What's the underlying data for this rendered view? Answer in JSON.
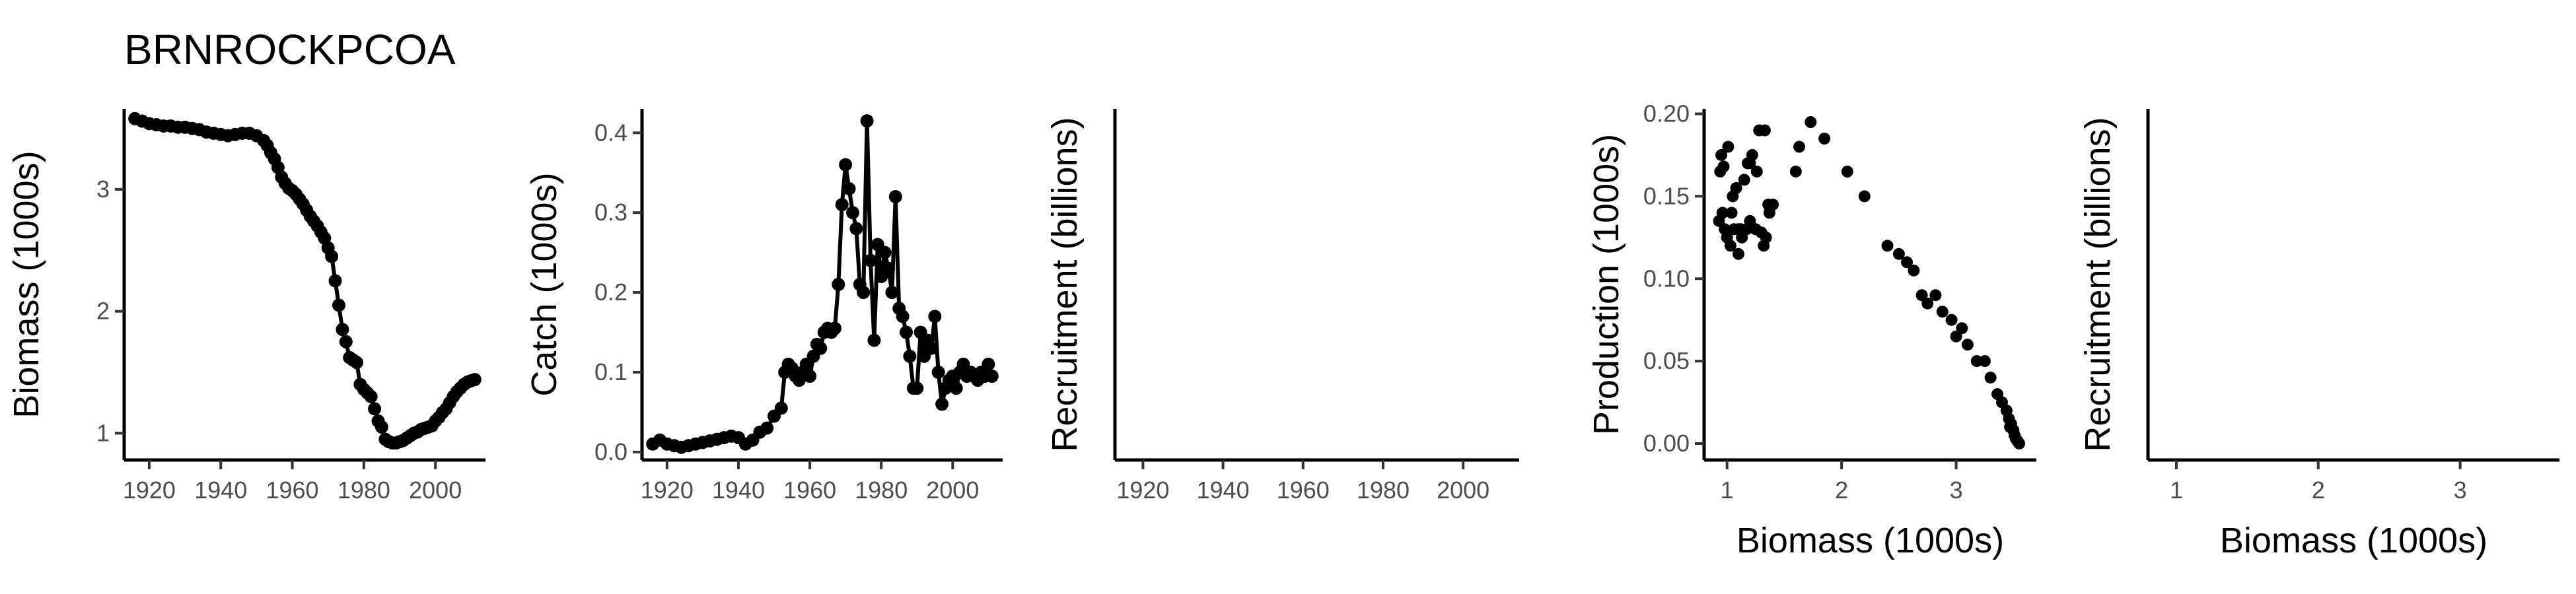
{
  "title": "BRNROCKPCOA",
  "chart_data": [
    {
      "type": "line",
      "xlabel": "",
      "ylabel": "Biomass (1000s)",
      "xlim": [
        1913,
        2014
      ],
      "ylim": [
        0.78,
        3.66
      ],
      "xticks": [
        1920,
        1940,
        1960,
        1980,
        2000
      ],
      "yticks": [
        1,
        2,
        3
      ],
      "markers": true,
      "x": [
        1916,
        1918,
        1920,
        1922,
        1924,
        1926,
        1928,
        1930,
        1932,
        1934,
        1936,
        1938,
        1940,
        1942,
        1944,
        1946,
        1948,
        1950,
        1952,
        1953,
        1954,
        1955,
        1956,
        1957,
        1958,
        1959,
        1960,
        1961,
        1962,
        1963,
        1964,
        1965,
        1966,
        1967,
        1968,
        1969,
        1970,
        1971,
        1972,
        1973,
        1974,
        1975,
        1976,
        1977,
        1978,
        1979,
        1980,
        1981,
        1982,
        1983,
        1984,
        1985,
        1986,
        1987,
        1988,
        1989,
        1990,
        1991,
        1992,
        1993,
        1994,
        1995,
        1996,
        1997,
        1998,
        1999,
        2000,
        2001,
        2002,
        2003,
        2004,
        2005,
        2006,
        2007,
        2008,
        2009,
        2010,
        2011
      ],
      "y": [
        3.58,
        3.56,
        3.54,
        3.53,
        3.52,
        3.52,
        3.51,
        3.51,
        3.5,
        3.49,
        3.47,
        3.46,
        3.45,
        3.44,
        3.45,
        3.46,
        3.46,
        3.44,
        3.4,
        3.36,
        3.3,
        3.25,
        3.18,
        3.1,
        3.05,
        3.01,
        2.99,
        2.96,
        2.92,
        2.88,
        2.83,
        2.78,
        2.74,
        2.7,
        2.65,
        2.6,
        2.52,
        2.45,
        2.25,
        2.05,
        1.85,
        1.75,
        1.62,
        1.6,
        1.58,
        1.4,
        1.36,
        1.33,
        1.3,
        1.2,
        1.1,
        1.05,
        0.95,
        0.93,
        0.92,
        0.92,
        0.93,
        0.94,
        0.96,
        0.98,
        1.0,
        1.01,
        1.03,
        1.04,
        1.05,
        1.06,
        1.1,
        1.13,
        1.17,
        1.2,
        1.25,
        1.3,
        1.34,
        1.37,
        1.4,
        1.42,
        1.43,
        1.44
      ]
    },
    {
      "type": "line",
      "xlabel": "",
      "ylabel": "Catch (1000s)",
      "xlim": [
        1913,
        2014
      ],
      "ylim": [
        -0.01,
        0.43
      ],
      "xticks": [
        1920,
        1940,
        1960,
        1980,
        2000
      ],
      "yticks": [
        0.0,
        0.1,
        0.2,
        0.3,
        0.4
      ],
      "markers": true,
      "x": [
        1916,
        1918,
        1920,
        1922,
        1924,
        1926,
        1928,
        1930,
        1932,
        1934,
        1936,
        1938,
        1940,
        1942,
        1944,
        1946,
        1948,
        1950,
        1952,
        1953,
        1954,
        1955,
        1956,
        1957,
        1958,
        1959,
        1960,
        1961,
        1962,
        1963,
        1964,
        1965,
        1966,
        1967,
        1968,
        1969,
        1970,
        1971,
        1972,
        1973,
        1974,
        1975,
        1976,
        1977,
        1978,
        1979,
        1980,
        1981,
        1982,
        1983,
        1984,
        1985,
        1986,
        1987,
        1988,
        1989,
        1990,
        1991,
        1992,
        1993,
        1994,
        1995,
        1996,
        1997,
        1998,
        1999,
        2000,
        2001,
        2002,
        2003,
        2004,
        2005,
        2006,
        2007,
        2008,
        2009,
        2010,
        2011
      ],
      "y": [
        0.01,
        0.015,
        0.01,
        0.008,
        0.006,
        0.008,
        0.01,
        0.012,
        0.014,
        0.016,
        0.018,
        0.02,
        0.018,
        0.01,
        0.015,
        0.025,
        0.03,
        0.045,
        0.055,
        0.1,
        0.11,
        0.105,
        0.095,
        0.09,
        0.1,
        0.11,
        0.095,
        0.12,
        0.135,
        0.13,
        0.15,
        0.155,
        0.15,
        0.155,
        0.21,
        0.31,
        0.36,
        0.33,
        0.3,
        0.28,
        0.21,
        0.2,
        0.415,
        0.24,
        0.14,
        0.26,
        0.22,
        0.25,
        0.23,
        0.2,
        0.32,
        0.18,
        0.17,
        0.15,
        0.12,
        0.08,
        0.08,
        0.15,
        0.12,
        0.14,
        0.13,
        0.17,
        0.1,
        0.06,
        0.08,
        0.09,
        0.095,
        0.08,
        0.1,
        0.11,
        0.095,
        0.1,
        0.095,
        0.09,
        0.1,
        0.095,
        0.11,
        0.095
      ]
    },
    {
      "type": "line",
      "xlabel": "",
      "ylabel": "Recruitment (billions)",
      "xlim": [
        1913,
        2014
      ],
      "xticks": [
        1920,
        1940,
        1960,
        1980,
        2000
      ],
      "yticks": [],
      "x": [],
      "y": []
    },
    {
      "type": "scatter",
      "xlabel": "Biomass (1000s)",
      "ylabel": "Production (1000s)",
      "xlim": [
        0.8,
        3.7
      ],
      "ylim": [
        -0.01,
        0.203
      ],
      "xticks": [
        1,
        2,
        3
      ],
      "yticks": [
        0.0,
        0.05,
        0.1,
        0.15,
        0.2
      ],
      "x": [
        0.93,
        0.96,
        0.98,
        1.0,
        1.03,
        1.06,
        1.1,
        1.13,
        1.17,
        1.2,
        1.25,
        1.3,
        1.34,
        1.37,
        1.4,
        0.94,
        0.95,
        1.01,
        1.05,
        1.08,
        1.12,
        1.15,
        1.2,
        1.22,
        1.28,
        1.33,
        1.36,
        0.97,
        1.04,
        1.1,
        1.18,
        1.26,
        1.32,
        1.6,
        1.63,
        1.73,
        1.85,
        2.05,
        2.2,
        2.4,
        2.5,
        2.57,
        2.63,
        2.7,
        2.75,
        2.82,
        2.88,
        2.96,
        3.0,
        3.05,
        3.1,
        3.18,
        3.25,
        3.3,
        3.36,
        3.4,
        3.44,
        3.46,
        3.47,
        3.48,
        3.5,
        3.51,
        3.52,
        3.53,
        3.54,
        3.55
      ],
      "y": [
        0.135,
        0.14,
        0.13,
        0.125,
        0.12,
        0.13,
        0.115,
        0.125,
        0.13,
        0.135,
        0.13,
        0.128,
        0.125,
        0.14,
        0.145,
        0.165,
        0.175,
        0.18,
        0.15,
        0.155,
        0.13,
        0.16,
        0.17,
        0.175,
        0.19,
        0.19,
        0.145,
        0.168,
        0.14,
        0.13,
        0.17,
        0.165,
        0.12,
        0.165,
        0.18,
        0.195,
        0.185,
        0.165,
        0.15,
        0.12,
        0.115,
        0.11,
        0.105,
        0.09,
        0.085,
        0.09,
        0.08,
        0.075,
        0.065,
        0.07,
        0.06,
        0.05,
        0.05,
        0.04,
        0.03,
        0.025,
        0.02,
        0.015,
        0.01,
        0.012,
        0.008,
        0.005,
        0.003,
        0.002,
        0.001,
        0.0
      ]
    },
    {
      "type": "scatter",
      "xlabel": "Biomass (1000s)",
      "ylabel": "Recruitment (billions)",
      "xlim": [
        0.8,
        3.7
      ],
      "xticks": [
        1,
        2,
        3
      ],
      "yticks": [],
      "x": [],
      "y": []
    }
  ]
}
